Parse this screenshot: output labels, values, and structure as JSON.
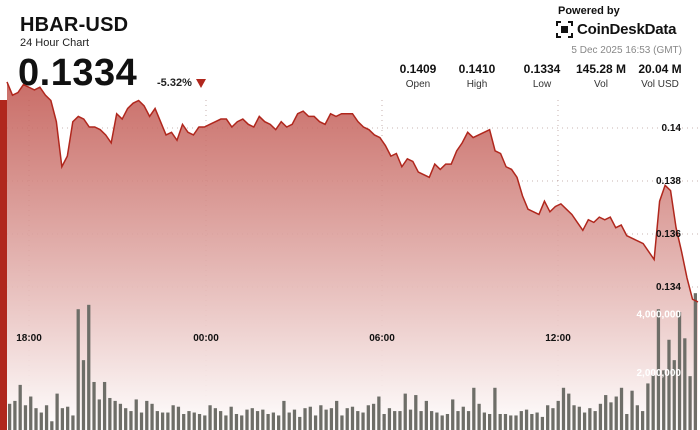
{
  "header": {
    "pair": "HBAR-USD",
    "subtitle": "24 Hour Chart",
    "price": "0.1334",
    "change": "-5.32%"
  },
  "branding": {
    "powered_by": "Powered by",
    "name": "CoinDeskData",
    "timestamp": "5 Dec 2025 16:53 (GMT)"
  },
  "stats": [
    {
      "value": "0.1409",
      "label": "Open"
    },
    {
      "value": "0.1410",
      "label": "High"
    },
    {
      "value": "0.1334",
      "label": "Low"
    },
    {
      "value": "145.28 M",
      "label": "Vol"
    },
    {
      "value": "20.04 M",
      "label": "Vol USD"
    }
  ],
  "colors": {
    "accent": "#b0271d",
    "line": "#b0271d",
    "area_top": "#c0544d",
    "volume_bar": "#6e6e68"
  },
  "chart_data": [
    {
      "type": "area",
      "title": "",
      "xlabel": "",
      "ylabel": "",
      "x_ticks": [
        "18:00",
        "00:00",
        "06:00",
        "12:00"
      ],
      "y_ticks": [
        "0.14",
        "0.138",
        "0.136",
        "0.134"
      ],
      "y_tick_values": [
        0.14,
        0.138,
        0.136,
        0.134
      ],
      "ylim": [
        0.13305,
        0.14206
      ],
      "grid": true,
      "series": [
        {
          "values": [
            0.1417,
            0.1412,
            0.1413,
            0.1416,
            0.1415,
            0.1414,
            0.1415,
            0.1412,
            0.141,
            0.1402,
            0.1385,
            0.1389,
            0.1402,
            0.1404,
            0.1403,
            0.14,
            0.14,
            0.1399,
            0.1397,
            0.1394,
            0.1405,
            0.1403,
            0.1407,
            0.1409,
            0.141,
            0.1408,
            0.1404,
            0.1407,
            0.1402,
            0.1397,
            0.1398,
            0.1395,
            0.1401,
            0.1398,
            0.1397,
            0.14,
            0.14,
            0.1401,
            0.1402,
            0.1403,
            0.1403,
            0.14,
            0.1402,
            0.1403,
            0.1401,
            0.14,
            0.1404,
            0.1402,
            0.1401,
            0.1399,
            0.1402,
            0.14,
            0.1401,
            0.1405,
            0.1406,
            0.1404,
            0.1404,
            0.1402,
            0.1401,
            0.1405,
            0.1404,
            0.1405,
            0.1405,
            0.1405,
            0.1402,
            0.14,
            0.1399,
            0.1397,
            0.1396,
            0.1393,
            0.1389,
            0.139,
            0.1385,
            0.1388,
            0.1387,
            0.1383,
            0.1382,
            0.1381,
            0.1386,
            0.1384,
            0.1386,
            0.1386,
            0.1391,
            0.1394,
            0.1398,
            0.1396,
            0.1397,
            0.1398,
            0.1399,
            0.1391,
            0.139,
            0.1385,
            0.1384,
            0.1381,
            0.1374,
            0.1369,
            0.1368,
            0.1367,
            0.1372,
            0.1368,
            0.137,
            0.1371,
            0.1369,
            0.1367,
            0.1364,
            0.1361,
            0.1365,
            0.1364,
            0.1366,
            0.1365,
            0.1366,
            0.1362,
            0.1363,
            0.1359,
            0.1358,
            0.1357,
            0.1356,
            0.1353,
            0.135,
            0.1372,
            0.1378,
            0.1376,
            0.1362,
            0.1353,
            0.1343,
            0.1335,
            0.1334
          ]
        }
      ]
    },
    {
      "type": "bar",
      "title": "",
      "y_ticks": [
        "4,000,000",
        "2,000,000"
      ],
      "y_tick_values": [
        4000000,
        2000000
      ],
      "ylim": [
        0,
        5840000
      ],
      "values": [
        900000,
        1000000,
        1550000,
        850000,
        1150000,
        750000,
        600000,
        850000,
        300000,
        1250000,
        750000,
        800000,
        500000,
        4150000,
        2400000,
        4300000,
        1650000,
        1050000,
        1650000,
        1100000,
        1000000,
        900000,
        750000,
        650000,
        1050000,
        600000,
        1000000,
        900000,
        650000,
        600000,
        600000,
        850000,
        800000,
        550000,
        650000,
        600000,
        550000,
        500000,
        850000,
        750000,
        650000,
        500000,
        800000,
        550000,
        500000,
        700000,
        750000,
        650000,
        700000,
        550000,
        600000,
        500000,
        1000000,
        600000,
        700000,
        450000,
        750000,
        800000,
        500000,
        850000,
        700000,
        750000,
        1000000,
        500000,
        750000,
        800000,
        650000,
        600000,
        850000,
        900000,
        1150000,
        550000,
        750000,
        650000,
        650000,
        1250000,
        700000,
        1200000,
        650000,
        1000000,
        650000,
        600000,
        500000,
        550000,
        1050000,
        650000,
        800000,
        650000,
        1450000,
        900000,
        600000,
        550000,
        1450000,
        550000,
        550000,
        500000,
        500000,
        650000,
        700000,
        550000,
        600000,
        450000,
        850000,
        750000,
        1000000,
        1450000,
        1250000,
        850000,
        800000,
        600000,
        750000,
        650000,
        900000,
        1200000,
        950000,
        1150000,
        1450000,
        550000,
        1350000,
        850000,
        650000,
        1600000,
        1900000,
        4150000,
        2050000,
        3100000,
        2400000,
        4050000,
        3150000,
        1850000,
        4700000
      ]
    }
  ]
}
